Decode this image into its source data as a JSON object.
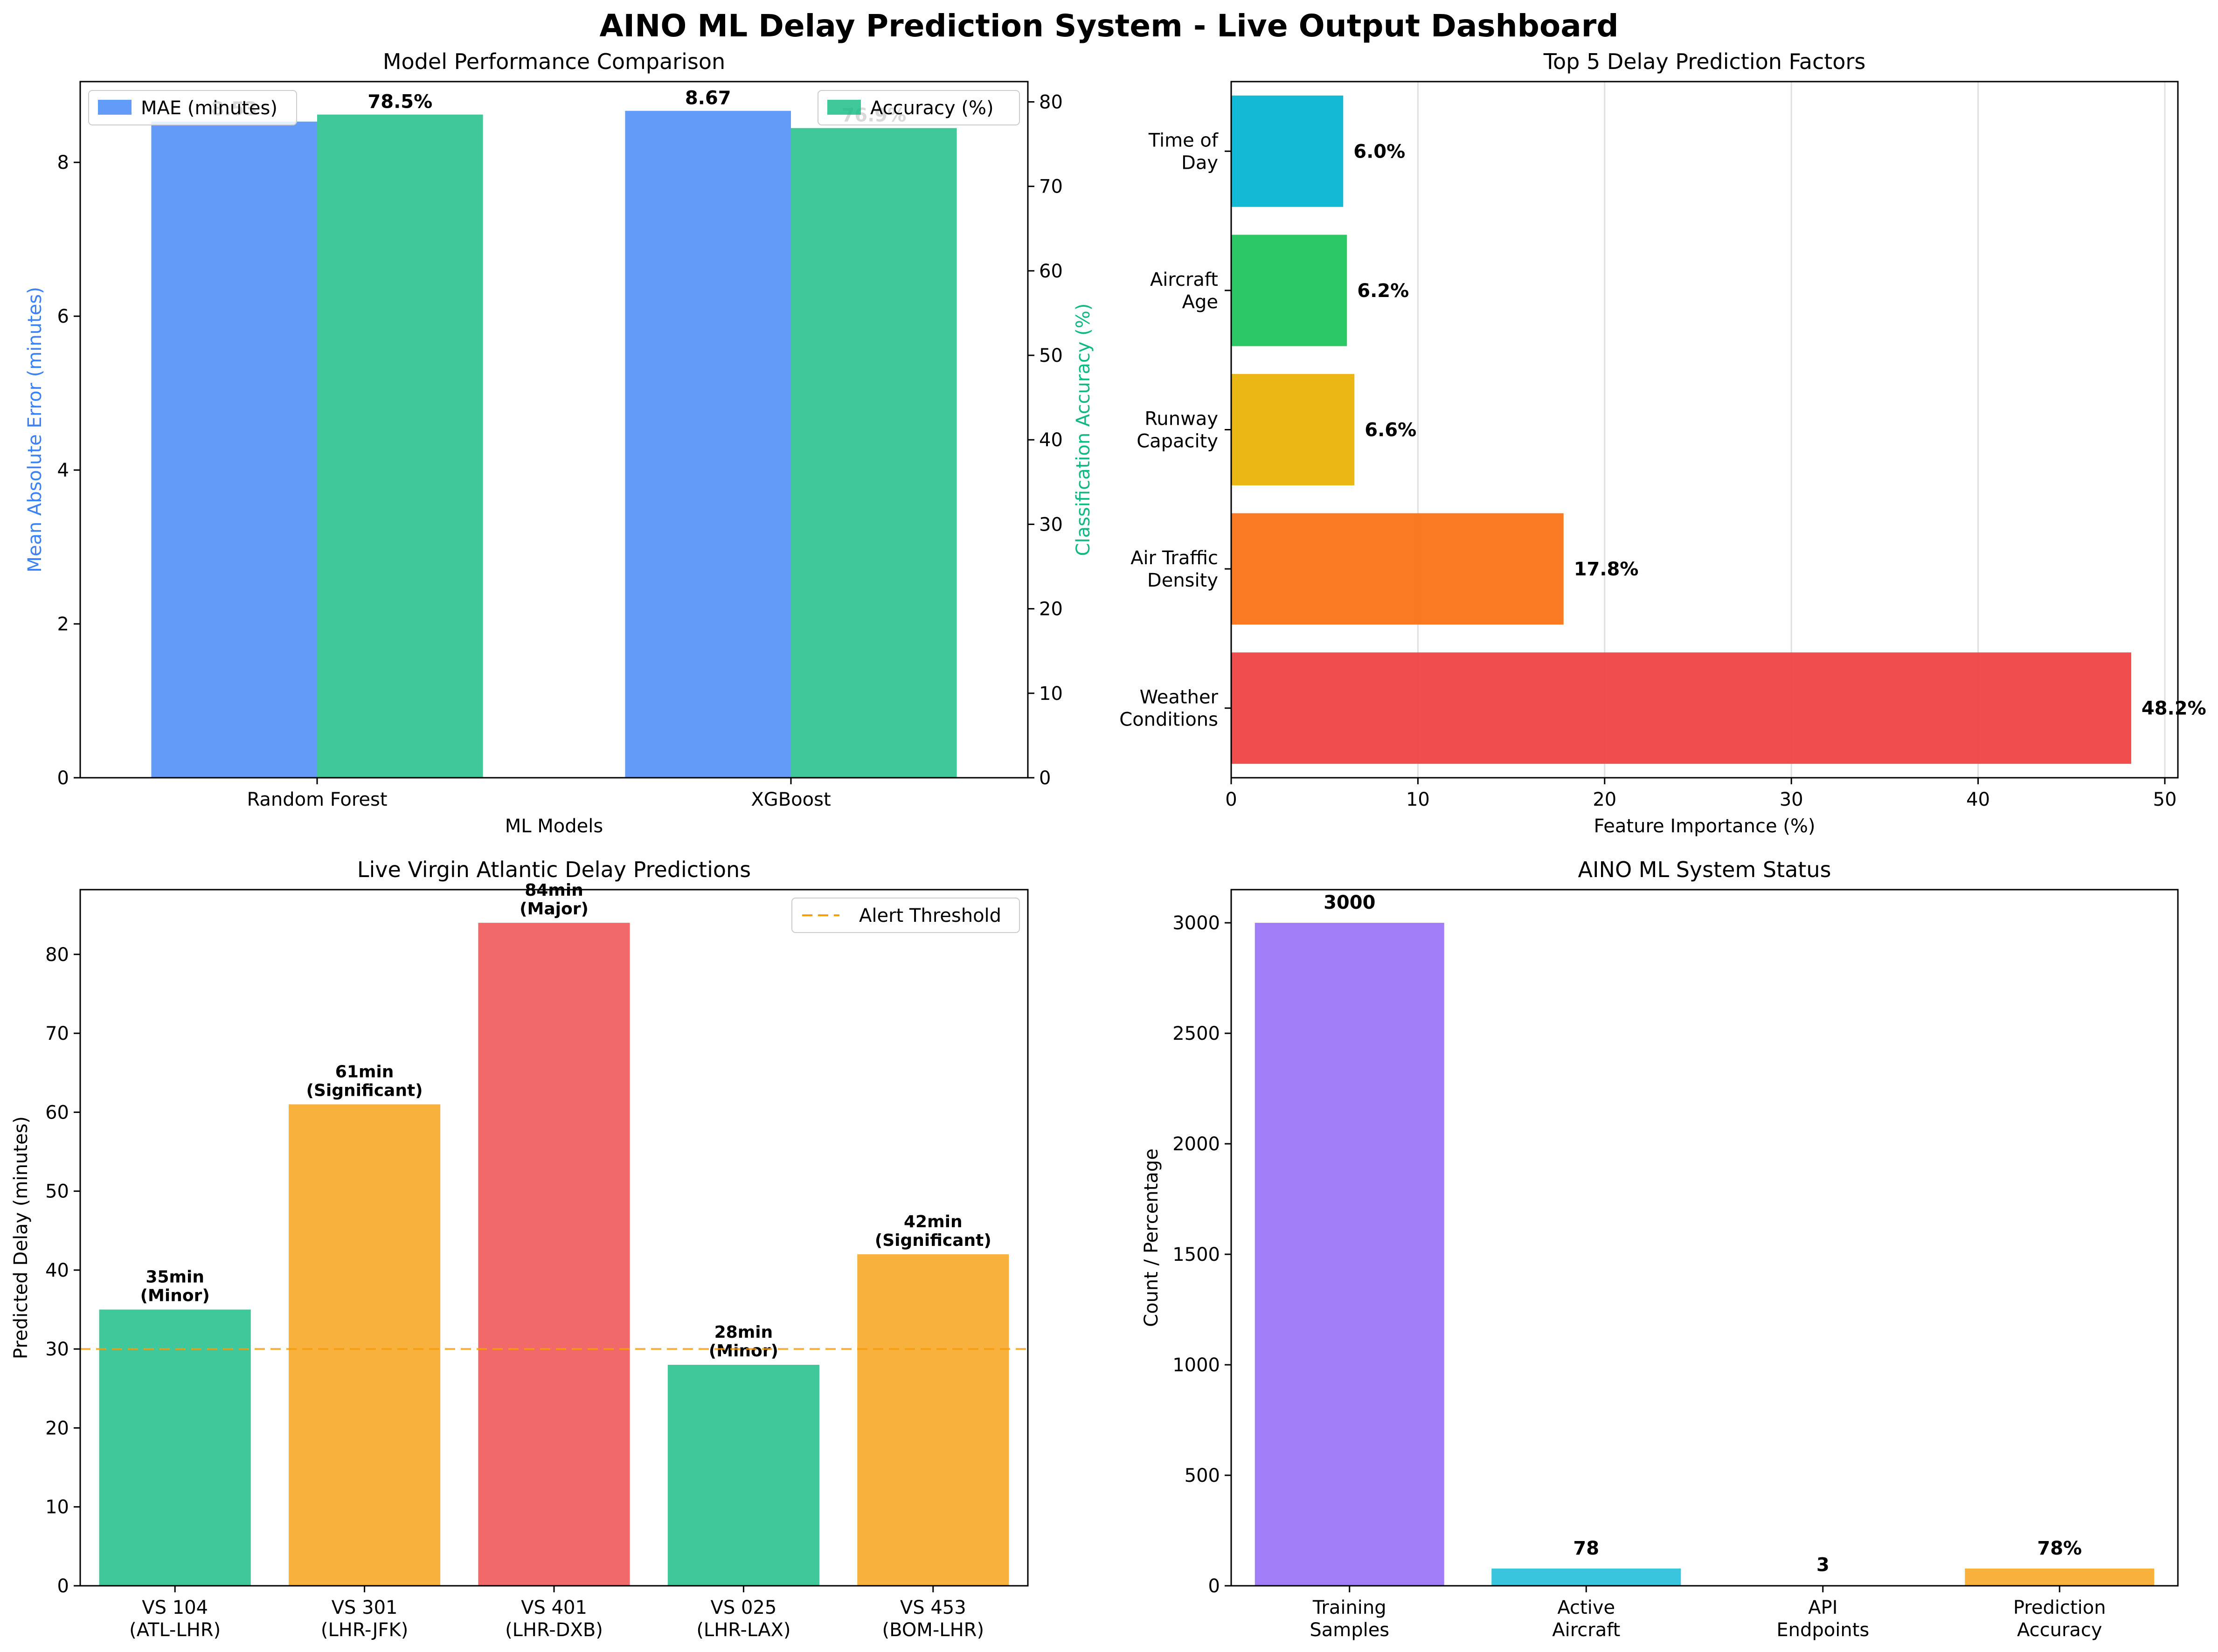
{
  "figure_title": "AINO ML Delay Prediction System - Live Output Dashboard",
  "colors": {
    "blue": "#3b82f6",
    "green": "#10b981",
    "orange": "#f59e0b",
    "red": "#ef4444",
    "purple": "#8b5cf6",
    "cyan": "#06b6d4",
    "amber": "#eab308",
    "lime": "#22c55e",
    "dark_orange": "#f97316"
  },
  "chart_data": [
    {
      "id": "model-performance",
      "type": "bar",
      "title": "Model Performance Comparison",
      "xlabel": "ML Models",
      "ylabel": "Mean Absolute Error (minutes)",
      "y2label": "Classification Accuracy (%)",
      "categories": [
        "Random Forest",
        "XGBoost"
      ],
      "series": [
        {
          "name": "MAE (minutes)",
          "axis": "left",
          "values": [
            8.53,
            8.67
          ],
          "labels": [
            "8.53",
            "8.67"
          ]
        },
        {
          "name": "Accuracy (%)",
          "axis": "right",
          "values": [
            78.5,
            76.9
          ],
          "labels": [
            "78.5%",
            "76.9%"
          ]
        }
      ],
      "ylim": [
        0,
        9.05
      ],
      "y2lim": [
        0,
        82.4
      ],
      "yticks": [
        0,
        2,
        4,
        6,
        8
      ],
      "y2ticks": [
        0,
        10,
        20,
        30,
        40,
        50,
        60,
        70,
        80
      ],
      "legend": [
        "top-left",
        "top-right"
      ]
    },
    {
      "id": "delay-factors",
      "type": "bar",
      "orientation": "horizontal",
      "title": "Top 5 Delay Prediction Factors",
      "xlabel": "Feature Importance (%)",
      "categories": [
        "Weather\nConditions",
        "Air Traffic\nDensity",
        "Runway\nCapacity",
        "Aircraft\nAge",
        "Time of\nDay"
      ],
      "values": [
        48.2,
        17.8,
        6.6,
        6.2,
        6.0
      ],
      "labels": [
        "48.2%",
        "17.8%",
        "6.6%",
        "6.2%",
        "6.0%"
      ],
      "xlim": [
        0,
        50.7
      ],
      "xticks": [
        0,
        10,
        20,
        30,
        40,
        50
      ],
      "grid": "x"
    },
    {
      "id": "live-predictions",
      "type": "bar",
      "title": "Live Virgin Atlantic Delay Predictions",
      "ylabel": "Predicted Delay (minutes)",
      "categories": [
        "VS 104\n(ATL-LHR)",
        "VS 301\n(LHR-JFK)",
        "VS 401\n(LHR-DXB)",
        "VS 025\n(LHR-LAX)",
        "VS 453\n(BOM-LHR)"
      ],
      "values": [
        35,
        61,
        84,
        28,
        42
      ],
      "labels": [
        "35min\n(Minor)",
        "61min\n(Significant)",
        "84min\n(Major)",
        "28min\n(Minor)",
        "42min\n(Significant)"
      ],
      "severity_colors": [
        "green",
        "orange",
        "red",
        "green",
        "orange"
      ],
      "threshold": {
        "name": "Alert Threshold",
        "value": 30
      },
      "ylim": [
        0,
        88.2
      ],
      "yticks": [
        0,
        10,
        20,
        30,
        40,
        50,
        60,
        70,
        80
      ],
      "legend": "top-right"
    },
    {
      "id": "system-status",
      "type": "bar",
      "title": "AINO ML System Status",
      "ylabel": "Count / Percentage",
      "categories": [
        "Training\nSamples",
        "Active\nAircraft",
        "API\nEndpoints",
        "Prediction\nAccuracy"
      ],
      "values": [
        3000,
        78,
        3,
        78
      ],
      "labels": [
        "3000",
        "78",
        "3",
        "78%"
      ],
      "bar_colors": [
        "purple",
        "cyan",
        "green",
        "orange"
      ],
      "ylim": [
        0,
        3150
      ],
      "yticks": [
        0,
        500,
        1000,
        1500,
        2000,
        2500,
        3000
      ]
    }
  ]
}
